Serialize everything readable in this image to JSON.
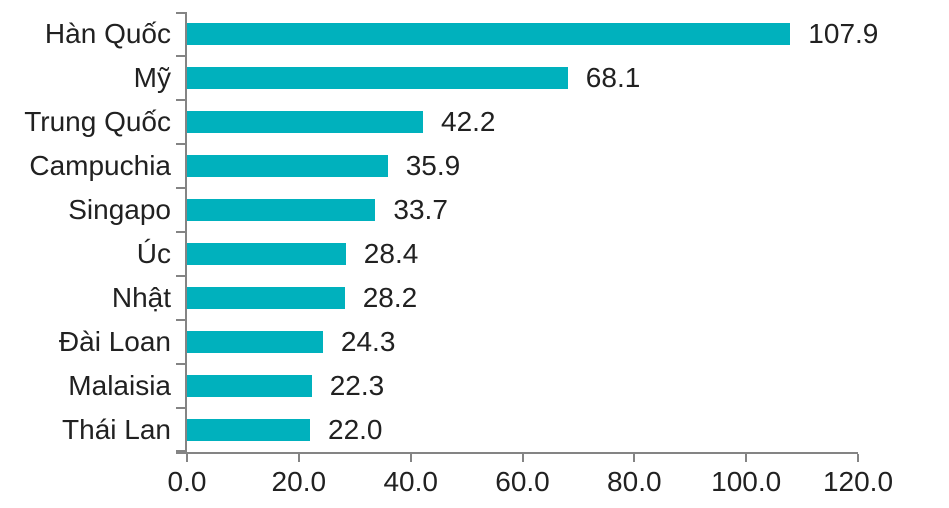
{
  "chart_data": {
    "type": "bar",
    "orientation": "horizontal",
    "title": "",
    "xlabel": "",
    "ylabel": "",
    "categories": [
      "Hàn Quốc",
      "Mỹ",
      "Trung Quốc",
      "Campuchia",
      "Singapo",
      "Úc",
      "Nhật",
      "Đài Loan",
      "Malaisia",
      "Thái Lan"
    ],
    "values": [
      107.9,
      68.1,
      42.2,
      35.9,
      33.7,
      28.4,
      28.2,
      24.3,
      22.3,
      22.0
    ],
    "value_labels": [
      "107.9",
      "68.1",
      "42.2",
      "35.9",
      "33.7",
      "28.4",
      "28.2",
      "24.3",
      "22.3",
      "22.0"
    ],
    "xlim": [
      0,
      120
    ],
    "x_ticks": [
      "0.0",
      "20.0",
      "40.0",
      "60.0",
      "80.0",
      "100.0",
      "120.0"
    ],
    "grid": false,
    "legend": false,
    "colors": {
      "bar": "#00B1BD",
      "axis": "#848484",
      "text": "#212121",
      "background": "#FFFFFF"
    }
  }
}
